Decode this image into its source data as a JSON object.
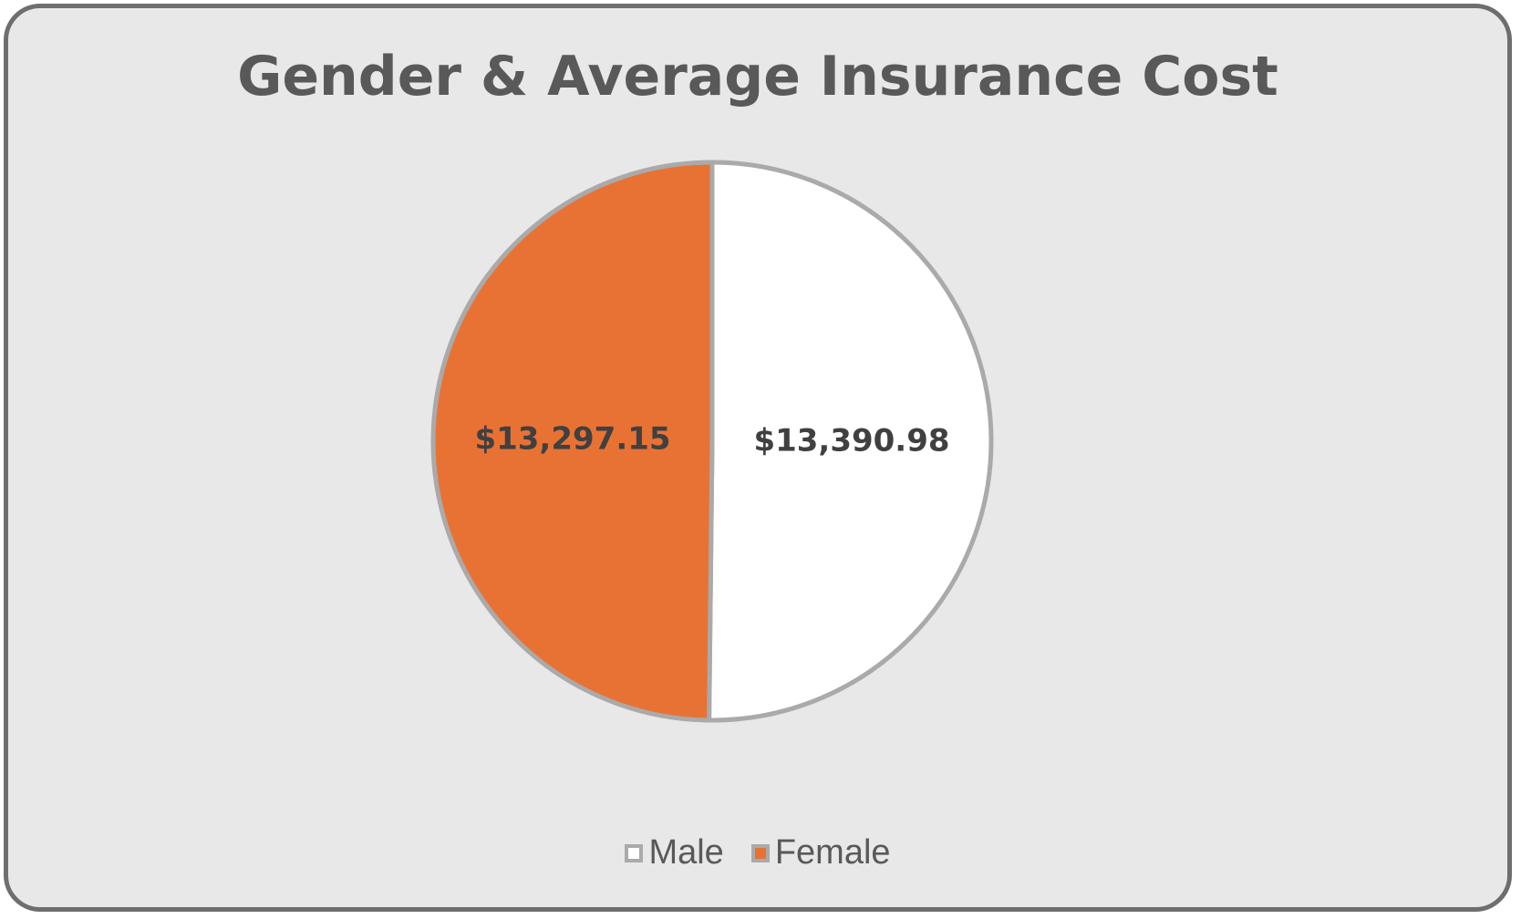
{
  "chart_data": {
    "type": "pie",
    "title": "Gender & Average Insurance Cost",
    "categories": [
      "Male",
      "Female"
    ],
    "values": [
      13390.98,
      13297.15
    ],
    "data_labels": [
      "$13,390.98",
      "$13,297.15"
    ],
    "colors": [
      "#ffffff",
      "#e87234"
    ],
    "slice_border_color": "#aaaaaa",
    "legend_position": "bottom"
  }
}
